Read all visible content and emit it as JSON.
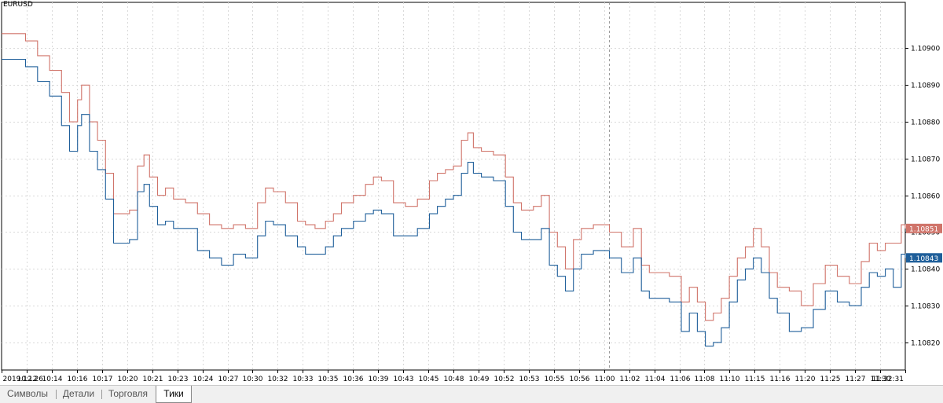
{
  "symbol": "EURUSD",
  "tabs": [
    {
      "label": "Символы",
      "active": false
    },
    {
      "label": "Детали",
      "active": false
    },
    {
      "label": "Торговля",
      "active": false
    },
    {
      "label": "Тики",
      "active": true
    }
  ],
  "colors": {
    "ask": "#d0746a",
    "bid": "#1f5f9a",
    "grid": "#d9d9d9",
    "crosshair": "#9a9a9a",
    "axis": "#000000"
  },
  "chart_data": {
    "type": "line",
    "title": "",
    "xlabel": "",
    "ylabel": "",
    "ylim": [
      1.108125,
      1.109125
    ],
    "yticks": [
      "1.10900",
      "1.10890",
      "1.10880",
      "1.10870",
      "1.10860",
      "1.10850",
      "1.10840",
      "1.10830",
      "1.10820"
    ],
    "ytick_values": [
      1.109,
      1.1089,
      1.1088,
      1.1087,
      1.1086,
      1.1085,
      1.1084,
      1.1083,
      1.1082
    ],
    "xticks": [
      "2019.12.26",
      "10:12",
      "10:14",
      "10:16",
      "10:17",
      "10:20",
      "10:21",
      "10:23",
      "10:24",
      "10:27",
      "10:30",
      "10:32",
      "10:33",
      "10:35",
      "10:36",
      "10:39",
      "10:43",
      "10:45",
      "10:48",
      "10:49",
      "10:52",
      "10:53",
      "10:55",
      "10:56",
      "11:00",
      "11:02",
      "11:04",
      "11:06",
      "11:08",
      "11:10",
      "11:15",
      "11:16",
      "11:20",
      "11:25",
      "11:27",
      "11:30",
      "11:32:31"
    ],
    "x_count": 1130,
    "grid": true,
    "crosshair_index": 760,
    "last_values": {
      "ask": "1.10851",
      "bid": "1.10843"
    },
    "series": [
      {
        "key": "ask",
        "x": [
          0,
          30,
          45,
          60,
          75,
          85,
          95,
          100,
          110,
          120,
          130,
          140,
          150,
          160,
          170,
          178,
          185,
          195,
          205,
          215,
          230,
          245,
          260,
          275,
          290,
          305,
          320,
          330,
          340,
          355,
          370,
          380,
          392,
          405,
          415,
          425,
          440,
          455,
          465,
          475,
          490,
          505,
          520,
          535,
          545,
          555,
          565,
          575,
          583,
          590,
          600,
          615,
          630,
          640,
          650,
          665,
          675,
          685,
          695,
          705,
          715,
          725,
          740,
          760,
          775,
          790,
          800,
          810,
          820,
          835,
          850,
          860,
          870,
          880,
          890,
          900,
          910,
          920,
          930,
          940,
          950,
          960,
          970,
          985,
          1000,
          1015,
          1030,
          1045,
          1060,
          1075,
          1085,
          1095,
          1105,
          1115,
          1125,
          1130
        ],
        "y": [
          1.10904,
          1.10902,
          1.10898,
          1.10894,
          1.10888,
          1.1088,
          1.10886,
          1.1089,
          1.1088,
          1.10875,
          1.10866,
          1.10855,
          1.10855,
          1.10856,
          1.10868,
          1.10871,
          1.10865,
          1.1086,
          1.10862,
          1.10859,
          1.10858,
          1.10855,
          1.10852,
          1.10851,
          1.10852,
          1.10851,
          1.10858,
          1.10862,
          1.10861,
          1.10858,
          1.10853,
          1.10852,
          1.10851,
          1.10853,
          1.10855,
          1.10858,
          1.1086,
          1.10863,
          1.10865,
          1.10864,
          1.10858,
          1.10857,
          1.10859,
          1.10864,
          1.10866,
          1.10867,
          1.10868,
          1.10875,
          1.10877,
          1.10873,
          1.10872,
          1.10871,
          1.10865,
          1.10858,
          1.10856,
          1.10857,
          1.1086,
          1.1085,
          1.10846,
          1.1084,
          1.10848,
          1.10851,
          1.10852,
          1.1085,
          1.10846,
          1.10851,
          1.10841,
          1.10839,
          1.10839,
          1.10838,
          1.10831,
          1.10835,
          1.10831,
          1.10826,
          1.10828,
          1.10832,
          1.10838,
          1.10843,
          1.10846,
          1.10851,
          1.10846,
          1.10839,
          1.10835,
          1.10834,
          1.1083,
          1.10836,
          1.10841,
          1.10838,
          1.10836,
          1.10842,
          1.10847,
          1.10845,
          1.10847,
          1.10847,
          1.10852,
          1.10851
        ]
      },
      {
        "key": "bid",
        "x": [
          0,
          30,
          45,
          60,
          75,
          85,
          95,
          100,
          110,
          120,
          130,
          140,
          150,
          160,
          170,
          178,
          185,
          195,
          205,
          215,
          230,
          245,
          260,
          275,
          290,
          305,
          320,
          330,
          340,
          355,
          370,
          380,
          392,
          405,
          415,
          425,
          440,
          455,
          465,
          475,
          490,
          505,
          520,
          535,
          545,
          555,
          565,
          575,
          583,
          590,
          600,
          615,
          630,
          640,
          650,
          665,
          675,
          685,
          695,
          705,
          715,
          725,
          740,
          760,
          775,
          790,
          800,
          810,
          820,
          835,
          850,
          860,
          870,
          880,
          890,
          900,
          910,
          920,
          930,
          940,
          950,
          960,
          970,
          985,
          1000,
          1015,
          1030,
          1045,
          1060,
          1075,
          1085,
          1095,
          1105,
          1115,
          1125,
          1130
        ],
        "y": [
          1.10897,
          1.10895,
          1.10891,
          1.10887,
          1.10879,
          1.10872,
          1.10879,
          1.10882,
          1.10872,
          1.10867,
          1.10859,
          1.10847,
          1.10847,
          1.10848,
          1.10861,
          1.10863,
          1.10857,
          1.10852,
          1.10853,
          1.10851,
          1.10851,
          1.10845,
          1.10843,
          1.10841,
          1.10844,
          1.10843,
          1.10849,
          1.10853,
          1.10852,
          1.10849,
          1.10846,
          1.10844,
          1.10844,
          1.10846,
          1.10849,
          1.10851,
          1.10853,
          1.10855,
          1.10856,
          1.10855,
          1.10849,
          1.10849,
          1.10851,
          1.10855,
          1.10857,
          1.10859,
          1.1086,
          1.10866,
          1.10869,
          1.10866,
          1.10865,
          1.10864,
          1.10857,
          1.1085,
          1.10848,
          1.10848,
          1.10851,
          1.10841,
          1.10838,
          1.10834,
          1.1084,
          1.10844,
          1.10845,
          1.10843,
          1.10839,
          1.10843,
          1.10834,
          1.10832,
          1.10832,
          1.10831,
          1.10823,
          1.10828,
          1.10823,
          1.10819,
          1.1082,
          1.10824,
          1.10831,
          1.10837,
          1.1084,
          1.10843,
          1.10839,
          1.10832,
          1.10828,
          1.10823,
          1.10824,
          1.10829,
          1.10834,
          1.10831,
          1.1083,
          1.10835,
          1.10839,
          1.10838,
          1.1084,
          1.10835,
          1.10844,
          1.10843
        ]
      }
    ]
  }
}
